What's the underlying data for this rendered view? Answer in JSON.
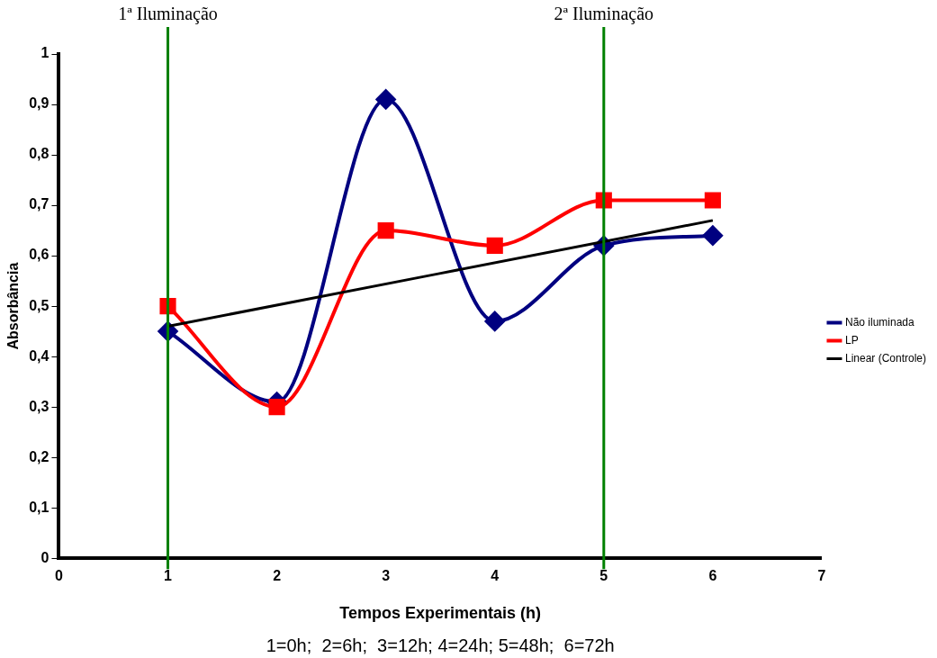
{
  "chart_data": {
    "type": "line",
    "xlabel": "Tempos Experimentais (h)",
    "ylabel": "Absorbância",
    "x": [
      1,
      2,
      3,
      4,
      5,
      6
    ],
    "series": [
      {
        "name": "Não iluminada",
        "color": "#000080",
        "marker": "diamond",
        "values": [
          0.45,
          0.31,
          0.91,
          0.47,
          0.62,
          0.64
        ]
      },
      {
        "name": "LP",
        "color": "#ff0000",
        "marker": "square",
        "values": [
          0.5,
          0.3,
          0.65,
          0.62,
          0.71,
          0.71
        ]
      },
      {
        "name": "Linear (Controle)",
        "color": "#000000",
        "marker": "none",
        "x": [
          1,
          6
        ],
        "values": [
          0.46,
          0.67
        ]
      }
    ],
    "xlim": [
      0,
      7
    ],
    "xticks": [
      0,
      1,
      2,
      3,
      4,
      5,
      6,
      7
    ],
    "ylim": [
      0,
      1
    ],
    "yticks": [
      0,
      {
        "value": 0.1,
        "label": "0,1"
      },
      {
        "value": 0.2,
        "label": "0,2"
      },
      {
        "value": 0.3,
        "label": "0,3"
      },
      {
        "value": 0.4,
        "label": "0,4"
      },
      {
        "value": 0.5,
        "label": "0,5"
      },
      {
        "value": 0.6,
        "label": "0,6"
      },
      {
        "value": 0.7,
        "label": "0,7"
      },
      {
        "value": 0.8,
        "label": "0,8"
      },
      {
        "value": 0.9,
        "label": "0,9"
      },
      1
    ],
    "ref_lines": [
      {
        "axis": "x",
        "value": 1,
        "label": "1ª Iluminação",
        "color": "#008000"
      },
      {
        "axis": "x",
        "value": 5,
        "label": "2ª Iluminação",
        "color": "#008000"
      }
    ],
    "annotations": [
      "1=0h;  2=6h;  3=12h; 4=24h; 5=48h;  6=72h"
    ],
    "grid": false,
    "legend": "right"
  }
}
